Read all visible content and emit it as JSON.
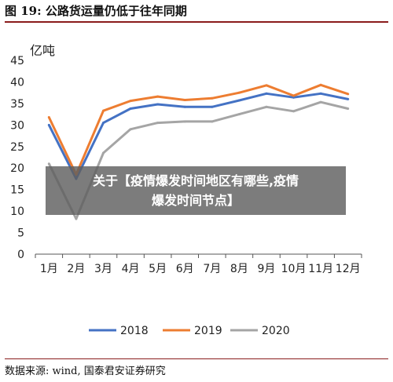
{
  "figure": {
    "title": "图 19: 公路货运量仍低于往年同期",
    "source": "数据来源: wind, 国泰君安证券研究"
  },
  "overlay": {
    "line1": "关于【疫情爆发时间地区有哪些,疫情",
    "line2": "爆发时间节点】"
  },
  "chart_data": {
    "type": "line",
    "unit_label": "亿吨",
    "categories": [
      "1月",
      "2月",
      "3月",
      "4月",
      "5月",
      "6月",
      "7月",
      "8月",
      "9月",
      "10月",
      "11月",
      "12月"
    ],
    "ylim": [
      0,
      45
    ],
    "yticks": [
      0,
      5,
      10,
      15,
      20,
      25,
      30,
      35,
      40,
      45
    ],
    "grid": false,
    "legend": "bottom",
    "series": [
      {
        "name": "2018",
        "color": "#4472C4",
        "values": [
          30.0,
          17.5,
          30.5,
          33.8,
          34.8,
          34.2,
          34.2,
          35.7,
          37.3,
          36.4,
          37.3,
          36.0
        ]
      },
      {
        "name": "2019",
        "color": "#ED7D31",
        "values": [
          31.8,
          18.5,
          33.3,
          35.6,
          36.6,
          35.8,
          36.2,
          37.5,
          39.2,
          36.8,
          39.3,
          37.2
        ]
      },
      {
        "name": "2020",
        "color": "#A5A5A5",
        "values": [
          21.0,
          8.2,
          23.5,
          29.0,
          30.5,
          30.8,
          30.8,
          32.5,
          34.2,
          33.2,
          35.3,
          33.8
        ]
      }
    ]
  }
}
